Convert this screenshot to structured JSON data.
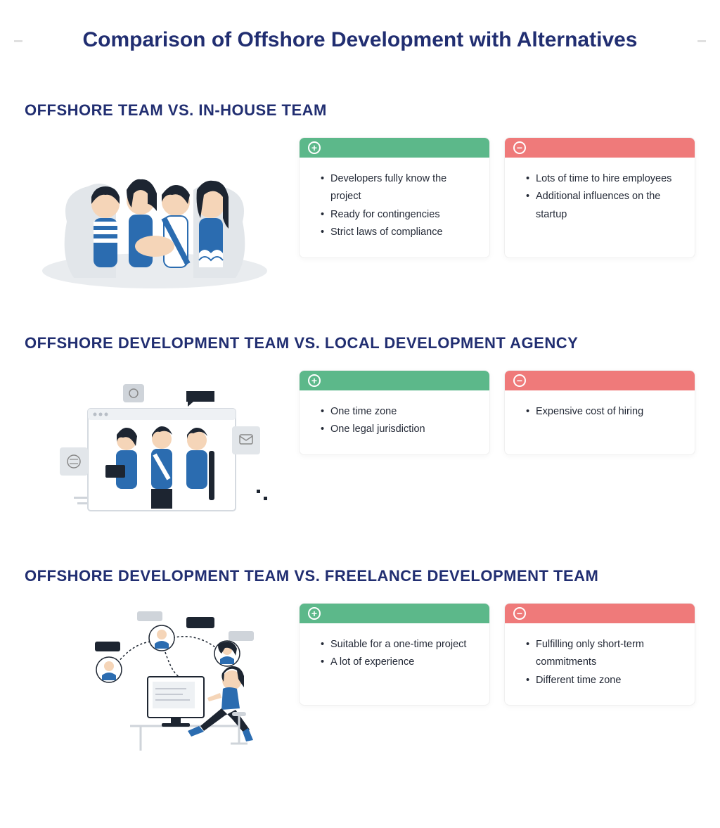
{
  "title": "Comparison of Offshore Development with Alternatives",
  "colors": {
    "title": "#212e71",
    "heading": "#212e71",
    "text": "#232936",
    "positive_bg": "#5cb88a",
    "negative_bg": "#ef7a7a",
    "card_bg": "#ffffff",
    "card_border": "#f0f0f0",
    "illustration_blue": "#2b6cb0",
    "illustration_grey": "#e2e6ea",
    "illustration_dark": "#1d2531"
  },
  "typography": {
    "title_fontsize": 30,
    "heading_fontsize": 22,
    "body_fontsize": 14.5
  },
  "plus_symbol": "+",
  "minus_symbol": "−",
  "sections": [
    {
      "heading": "OFFSHORE TEAM VS. IN-HOUSE TEAM",
      "illustration": "team-hands",
      "pros": [
        "Developers fully know the project",
        "Ready for contingencies",
        "Strict laws of compliance"
      ],
      "cons": [
        "Lots of time to hire employees",
        "Additional influences on the startup"
      ]
    },
    {
      "heading": "OFFSHORE DEVELOPMENT TEAM VS. LOCAL DEVELOPMENT AGENCY",
      "illustration": "agency-window",
      "pros": [
        "One time zone",
        "One legal jurisdiction"
      ],
      "cons": [
        "Expensive cost of hiring"
      ]
    },
    {
      "heading": "OFFSHORE DEVELOPMENT TEAM VS. FREELANCE DEVELOPMENT TEAM",
      "illustration": "freelance-remote",
      "pros": [
        "Suitable for a one-time project",
        "A lot of experience"
      ],
      "cons": [
        "Fulfilling only short-term commitments",
        "Different time zone"
      ]
    }
  ]
}
